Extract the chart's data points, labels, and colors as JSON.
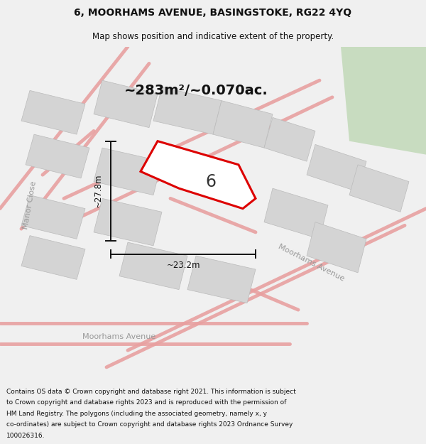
{
  "title": "6, MOORHAMS AVENUE, BASINGSTOKE, RG22 4YQ",
  "subtitle": "Map shows position and indicative extent of the property.",
  "footer_lines": [
    "Contains OS data © Crown copyright and database right 2021. This information is subject",
    "to Crown copyright and database rights 2023 and is reproduced with the permission of",
    "HM Land Registry. The polygons (including the associated geometry, namely x, y",
    "co-ordinates) are subject to Crown copyright and database rights 2023 Ordnance Survey",
    "100026316."
  ],
  "area_label": "~283m²/~0.070ac.",
  "width_label": "~23.2m",
  "height_label": "~27.8m",
  "property_number": "6",
  "bg_color": "#f0f0f0",
  "map_bg": "#f8f8f8",
  "road_color": "#e8a0a0",
  "property_color": "#dd0000",
  "green_color": "#c8dcc0",
  "gray_block": "#d4d4d4",
  "gray_block_edge": "#bbbbbb",
  "dim_color": "#111111",
  "road_label_color": "#999999",
  "title_fontsize": 10,
  "subtitle_fontsize": 8.5,
  "footer_fontsize": 6.5
}
